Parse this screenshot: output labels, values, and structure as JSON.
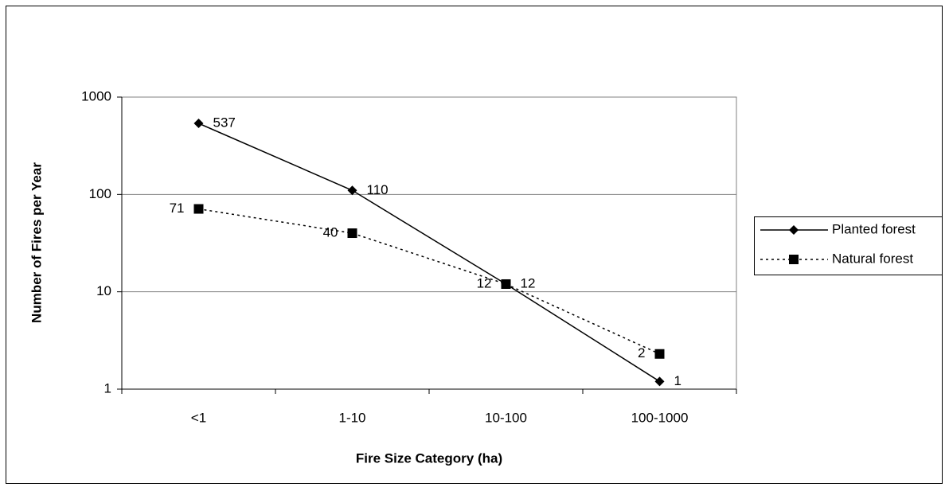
{
  "chart_data": {
    "type": "line",
    "x_label": "Fire Size Category (ha)",
    "y_label": "Number of Fires per Year",
    "categories": [
      "<1",
      "1-10",
      "10-100",
      "100-1000"
    ],
    "series": [
      {
        "name": "Planted forest",
        "color": "#000000",
        "line_style": "solid",
        "marker": "diamond",
        "values": [
          537,
          110,
          12,
          1.2
        ],
        "value_labels": [
          "537",
          "110",
          "12",
          "1"
        ]
      },
      {
        "name": "Natural forest",
        "color": "#000000",
        "line_style": "dotted",
        "marker": "square",
        "values": [
          71,
          40,
          12,
          2.3
        ],
        "value_labels": [
          "71",
          "40",
          "12",
          "2"
        ]
      }
    ],
    "ylim": [
      1,
      1000
    ],
    "yticks": [
      1,
      10,
      100,
      1000
    ],
    "log_scale": true,
    "grid": true,
    "legend_position": "right"
  }
}
